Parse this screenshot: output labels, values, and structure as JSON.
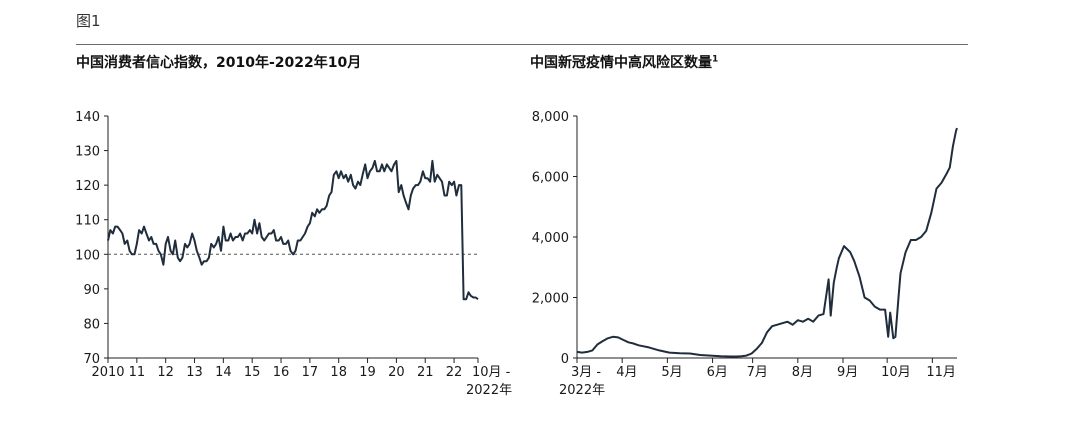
{
  "figure_label": "图1",
  "chart_data": [
    {
      "type": "line",
      "title": "中国消费者信心指数，2010年-2022年10月",
      "ylim": [
        70,
        140
      ],
      "yticks": [
        70,
        80,
        90,
        100,
        110,
        120,
        130,
        140
      ],
      "xlim": [
        2010,
        2022.83
      ],
      "xtick_labels": [
        {
          "x": 2010,
          "label": "2010"
        },
        {
          "x": 2011,
          "label": "11"
        },
        {
          "x": 2012,
          "label": "12"
        },
        {
          "x": 2013,
          "label": "13"
        },
        {
          "x": 2014,
          "label": "14"
        },
        {
          "x": 2015,
          "label": "15"
        },
        {
          "x": 2016,
          "label": "16"
        },
        {
          "x": 2017,
          "label": "17"
        },
        {
          "x": 2018,
          "label": "18"
        },
        {
          "x": 2019,
          "label": "19"
        },
        {
          "x": 2020,
          "label": "20"
        },
        {
          "x": 2021,
          "label": "21"
        },
        {
          "x": 2022,
          "label": "22"
        }
      ],
      "end_label": [
        "10月 -",
        "2022年"
      ],
      "reference_line": 100,
      "series": [
        {
          "x": [
            2010.0,
            2010.08,
            2010.17,
            2010.25,
            2010.33,
            2010.42,
            2010.5,
            2010.58,
            2010.67,
            2010.75,
            2010.83,
            2010.92,
            2011.0,
            2011.08,
            2011.17,
            2011.25,
            2011.33,
            2011.42,
            2011.5,
            2011.58,
            2011.67,
            2011.75,
            2011.83,
            2011.92,
            2012.0,
            2012.08,
            2012.17,
            2012.25,
            2012.33,
            2012.42,
            2012.5,
            2012.58,
            2012.67,
            2012.75,
            2012.83,
            2012.92,
            2013.0,
            2013.08,
            2013.17,
            2013.25,
            2013.33,
            2013.42,
            2013.5,
            2013.58,
            2013.67,
            2013.75,
            2013.83,
            2013.92,
            2014.0,
            2014.08,
            2014.17,
            2014.25,
            2014.33,
            2014.42,
            2014.5,
            2014.58,
            2014.67,
            2014.75,
            2014.83,
            2014.92,
            2015.0,
            2015.08,
            2015.17,
            2015.25,
            2015.33,
            2015.42,
            2015.5,
            2015.58,
            2015.67,
            2015.75,
            2015.83,
            2015.92,
            2016.0,
            2016.08,
            2016.17,
            2016.25,
            2016.33,
            2016.42,
            2016.5,
            2016.58,
            2016.67,
            2016.75,
            2016.83,
            2016.92,
            2017.0,
            2017.08,
            2017.17,
            2017.25,
            2017.33,
            2017.42,
            2017.5,
            2017.58,
            2017.67,
            2017.75,
            2017.83,
            2017.92,
            2018.0,
            2018.08,
            2018.17,
            2018.25,
            2018.33,
            2018.42,
            2018.5,
            2018.58,
            2018.67,
            2018.75,
            2018.83,
            2018.92,
            2019.0,
            2019.08,
            2019.17,
            2019.25,
            2019.33,
            2019.42,
            2019.5,
            2019.58,
            2019.67,
            2019.75,
            2019.83,
            2019.92,
            2020.0,
            2020.08,
            2020.17,
            2020.25,
            2020.33,
            2020.42,
            2020.5,
            2020.58,
            2020.67,
            2020.75,
            2020.83,
            2020.92,
            2021.0,
            2021.08,
            2021.17,
            2021.25,
            2021.33,
            2021.42,
            2021.5,
            2021.58,
            2021.67,
            2021.75,
            2021.83,
            2021.92,
            2022.0,
            2022.08,
            2022.17,
            2022.25,
            2022.33,
            2022.42,
            2022.5,
            2022.58,
            2022.67,
            2022.75,
            2022.83
          ],
          "y": [
            104,
            107,
            106,
            108,
            108,
            107,
            106,
            103,
            104,
            101,
            100,
            100,
            103,
            107,
            106,
            108,
            106,
            104,
            105,
            103,
            103,
            101,
            100,
            97,
            103,
            105,
            101,
            100,
            104,
            99,
            98,
            99,
            103,
            102,
            103,
            106,
            104,
            101,
            99,
            97,
            98,
            98,
            99,
            103,
            102,
            103,
            105,
            101,
            108,
            104,
            104,
            106,
            104,
            105,
            105,
            106,
            104,
            106,
            106,
            107,
            106,
            110,
            106,
            109,
            105,
            104,
            105,
            106,
            106,
            107,
            104,
            104,
            105,
            103,
            103,
            104,
            101,
            100,
            101,
            104,
            104,
            105,
            106,
            108,
            109,
            112,
            111,
            113,
            112,
            113,
            113,
            114,
            117,
            118,
            123,
            124,
            122,
            124,
            122,
            123,
            121,
            123,
            120,
            119,
            121,
            120,
            123,
            126,
            122,
            124,
            125,
            127,
            124,
            124,
            126,
            124,
            126,
            125,
            124,
            126,
            127,
            118,
            120,
            117,
            115,
            113,
            117,
            119,
            120,
            120,
            121,
            124,
            122,
            122,
            121,
            127,
            121,
            123,
            122,
            121,
            117,
            117,
            121,
            120,
            121,
            117,
            120,
            120,
            87,
            87,
            89,
            88,
            87.5,
            87.5,
            87
          ]
        }
      ]
    },
    {
      "type": "line",
      "title": "中国新冠疫情中高风险区数量",
      "title_footnote": "1",
      "ylim": [
        0,
        8000
      ],
      "yticks": [
        0,
        2000,
        4000,
        6000,
        8000
      ],
      "ytick_labels": [
        "0",
        "2,000",
        "4,000",
        "6,000",
        "8,000"
      ],
      "xlim": [
        0,
        37
      ],
      "xtick_labels": [
        {
          "x": 0,
          "label": "3月 -"
        },
        {
          "x": 4.4,
          "label": "4月"
        },
        {
          "x": 8.8,
          "label": "5月"
        },
        {
          "x": 13.2,
          "label": "6月"
        },
        {
          "x": 17.1,
          "label": "7月"
        },
        {
          "x": 21.5,
          "label": "8月"
        },
        {
          "x": 25.9,
          "label": "9月"
        },
        {
          "x": 30.2,
          "label": "10月"
        },
        {
          "x": 34.6,
          "label": "11月"
        }
      ],
      "x_start_sublabel": "2022年",
      "series": [
        {
          "x": [
            0,
            0.5,
            1,
            1.5,
            2,
            2.5,
            3,
            3.5,
            4,
            4.5,
            5,
            5.5,
            6,
            7,
            8,
            9,
            10,
            11,
            12,
            13,
            14,
            15,
            15.5,
            16,
            16.5,
            17,
            17.5,
            18,
            18.5,
            19,
            19.5,
            20,
            20.5,
            21,
            21.5,
            22,
            22.5,
            23,
            23.5,
            24,
            24.5,
            24.7,
            25,
            25.3,
            25.5,
            26,
            26.3,
            26.6,
            27,
            27.5,
            28,
            28.5,
            29,
            29.5,
            30,
            30.3,
            30.5,
            30.8,
            31,
            31.3,
            31.5,
            32,
            32.5,
            33,
            33.5,
            34,
            34.5,
            35,
            35.5,
            36,
            36.3,
            36.6,
            36.9,
            37
          ],
          "y": [
            200,
            180,
            200,
            250,
            450,
            560,
            650,
            700,
            680,
            600,
            520,
            480,
            420,
            350,
            250,
            180,
            160,
            150,
            100,
            80,
            60,
            50,
            50,
            60,
            80,
            150,
            300,
            500,
            850,
            1050,
            1100,
            1150,
            1200,
            1100,
            1250,
            1200,
            1300,
            1200,
            1400,
            1450,
            2600,
            1400,
            2500,
            3000,
            3300,
            3700,
            3600,
            3500,
            3200,
            2700,
            2000,
            1900,
            1700,
            1600,
            1600,
            700,
            1500,
            650,
            700,
            2000,
            2800,
            3500,
            3900,
            3900,
            4000,
            4200,
            4800,
            5600,
            5800,
            6100,
            6300,
            7000,
            7500,
            7600
          ]
        }
      ]
    }
  ]
}
